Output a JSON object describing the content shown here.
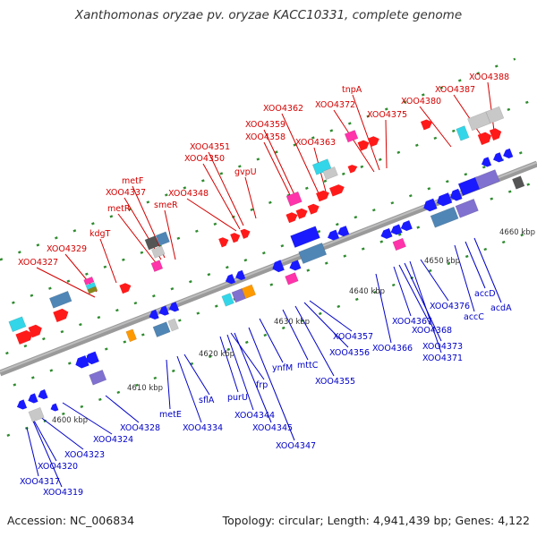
{
  "title": "Xanthomonas oryzae pv. oryzae KACC10331, complete genome",
  "footer": {
    "accession": "Accession: NC_006834",
    "summary": "Topology: circular; Length: 4,941,439 bp; Genes: 4,122"
  },
  "colors": {
    "backbone": "#8a8a8a",
    "forward_label": "#d40000",
    "reverse_label": "#0000c8",
    "tick": "#2e8b2e",
    "red": "#ff1a1a",
    "blue": "#1a1aff",
    "magenta": "#ff33aa",
    "cyan": "#33d6e8",
    "steel": "#4f86b6",
    "lavender": "#8070d0",
    "grey": "#c8c8c8",
    "dark_grey": "#555555",
    "orange": "#ff9900",
    "olive": "#88881a"
  },
  "scale_labels": [
    "4600 kbp",
    "4610 kbp",
    "4620 kbp",
    "4630 kbp",
    "4640 kbp",
    "4650 kbp",
    "4660 kbp"
  ],
  "forward_labels": [
    "XOO4327",
    "XOO4329",
    "kdgT",
    "metR",
    "XOO4337",
    "metF",
    "smeR",
    "XOO4348",
    "XOO4350",
    "XOO4351",
    "gvpU",
    "XOO4358",
    "XOO4359",
    "XOO4362",
    "XOO4363",
    "XOO4372",
    "tnpA",
    "XOO4375",
    "XOO4380",
    "XOO4387",
    "XOO4388"
  ],
  "reverse_labels": [
    "XOO4317",
    "XOO4319",
    "XOO4320",
    "XOO4323",
    "XOO4324",
    "XOO4328",
    "metE",
    "XOO4334",
    "sflA",
    "purU",
    "XOO4344",
    "frp",
    "XOO4345",
    "XOO4347",
    "ynfM",
    "mttC",
    "XOO4355",
    "XOO4356",
    "XOO4357",
    "XOO4366",
    "XOO4367",
    "XOO4368",
    "XOO4373",
    "XOO4371",
    "XOO4376",
    "accC",
    "accD",
    "acdA"
  ]
}
